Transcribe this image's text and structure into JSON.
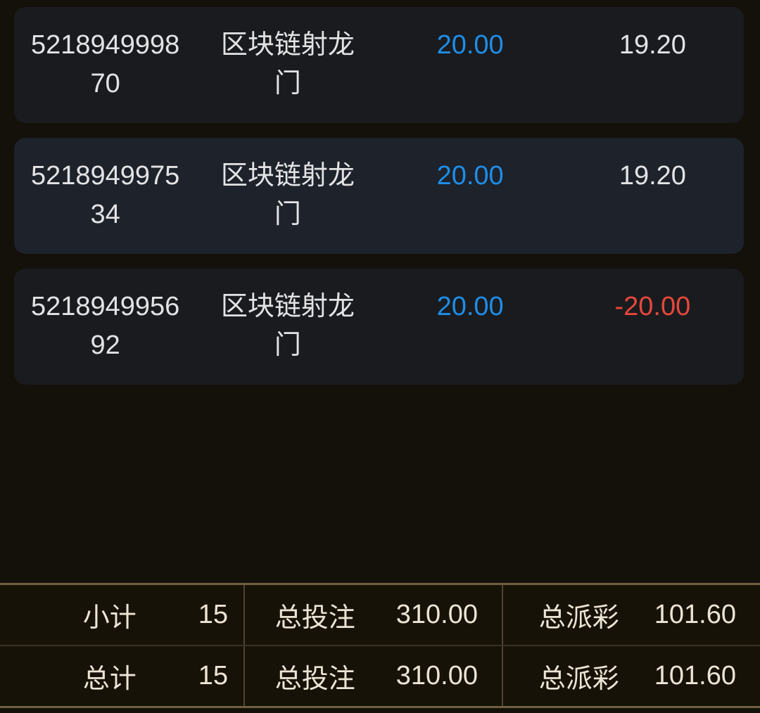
{
  "colors": {
    "page_bg": "#14100a",
    "card_bg": "#1a1b1e",
    "card_bg_alt": "#1d222b",
    "row_text": "#e3e3e5",
    "amount_blue": "#1e8ee9",
    "loss_red": "#e8473c",
    "summary_bg": "#171208",
    "summary_border": "#6f6040",
    "summary_divider_v": "#4f4531",
    "summary_divider_h": "#3a3222",
    "summary_text": "#ece4d4"
  },
  "records": [
    {
      "bet_id": "521894999870",
      "game_name": "区块链射龙门",
      "bet_amount": "20.00",
      "result": "19.20",
      "result_state": "win",
      "highlighted": false
    },
    {
      "bet_id": "521894997534",
      "game_name": "区块链射龙门",
      "bet_amount": "20.00",
      "result": "19.20",
      "result_state": "win",
      "highlighted": true
    },
    {
      "bet_id": "521894995692",
      "game_name": "区块链射龙门",
      "bet_amount": "20.00",
      "result": "-20.00",
      "result_state": "loss",
      "highlighted": false
    }
  ],
  "summary": {
    "rows": [
      {
        "count_label": "小计",
        "count": "15",
        "bet_label": "总投注",
        "bet_total": "310.00",
        "payout_label": "总派彩",
        "payout_total": "101.60"
      },
      {
        "count_label": "总计",
        "count": "15",
        "bet_label": "总投注",
        "bet_total": "310.00",
        "payout_label": "总派彩",
        "payout_total": "101.60"
      }
    ]
  }
}
